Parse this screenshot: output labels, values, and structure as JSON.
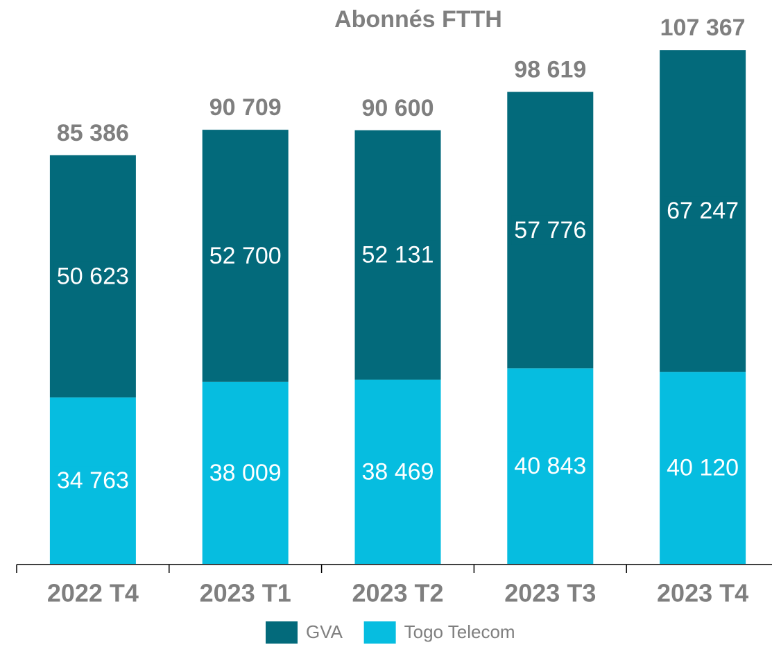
{
  "chart_data": {
    "type": "stacked_bar",
    "title": "Abonnés FTTH",
    "categories": [
      "2022 T4",
      "2023 T1",
      "2023 T2",
      "2023 T3",
      "2023 T4"
    ],
    "series": [
      {
        "name": "Togo Telecom",
        "color": "#06bde0",
        "values": [
          34763,
          38009,
          38469,
          40843,
          40120
        ],
        "value_labels": [
          "34 763",
          "38 009",
          "38 469",
          "40 843",
          "40 120"
        ]
      },
      {
        "name": "GVA",
        "color": "#036a7b",
        "values": [
          50623,
          52700,
          52131,
          57776,
          67247
        ],
        "value_labels": [
          "50 623",
          "52 700",
          "52 131",
          "57 776",
          "67 247"
        ]
      }
    ],
    "totals": [
      85386,
      90709,
      90600,
      98619,
      107367
    ],
    "total_labels": [
      "85 386",
      "90 709",
      "90 600",
      "98 619",
      "107 367"
    ],
    "ylim": [
      0,
      110000
    ],
    "legend_order": [
      "GVA",
      "Togo Telecom"
    ]
  }
}
